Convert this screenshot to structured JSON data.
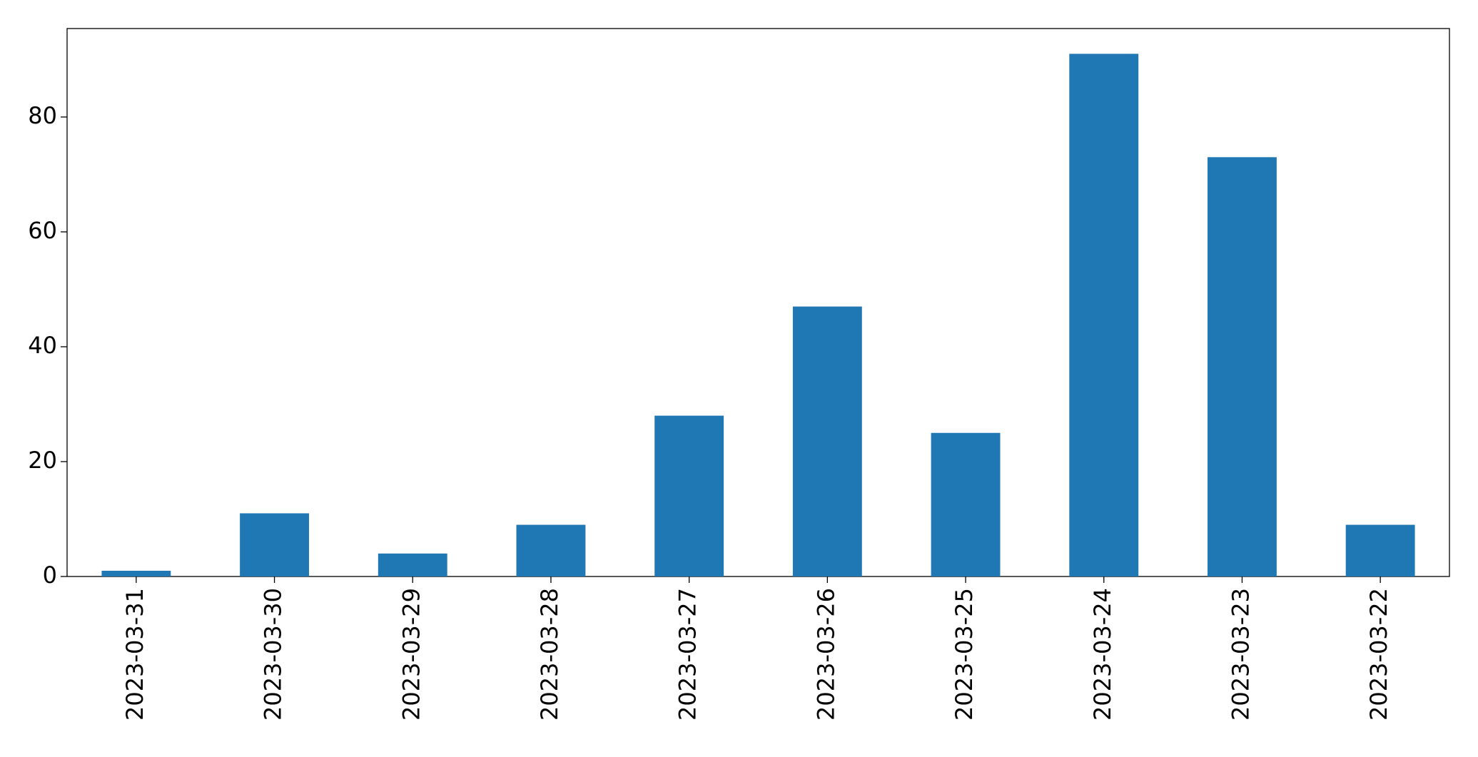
{
  "chart_data": {
    "type": "bar",
    "categories": [
      "2023-03-31",
      "2023-03-30",
      "2023-03-29",
      "2023-03-28",
      "2023-03-27",
      "2023-03-26",
      "2023-03-25",
      "2023-03-24",
      "2023-03-23",
      "2023-03-22"
    ],
    "values": [
      1,
      11,
      4,
      9,
      28,
      47,
      25,
      91,
      73,
      9
    ],
    "color": "#1f77b4",
    "ylim": [
      0,
      95.4
    ],
    "yticks": [
      0,
      20,
      40,
      60,
      80
    ],
    "grid": false
  }
}
